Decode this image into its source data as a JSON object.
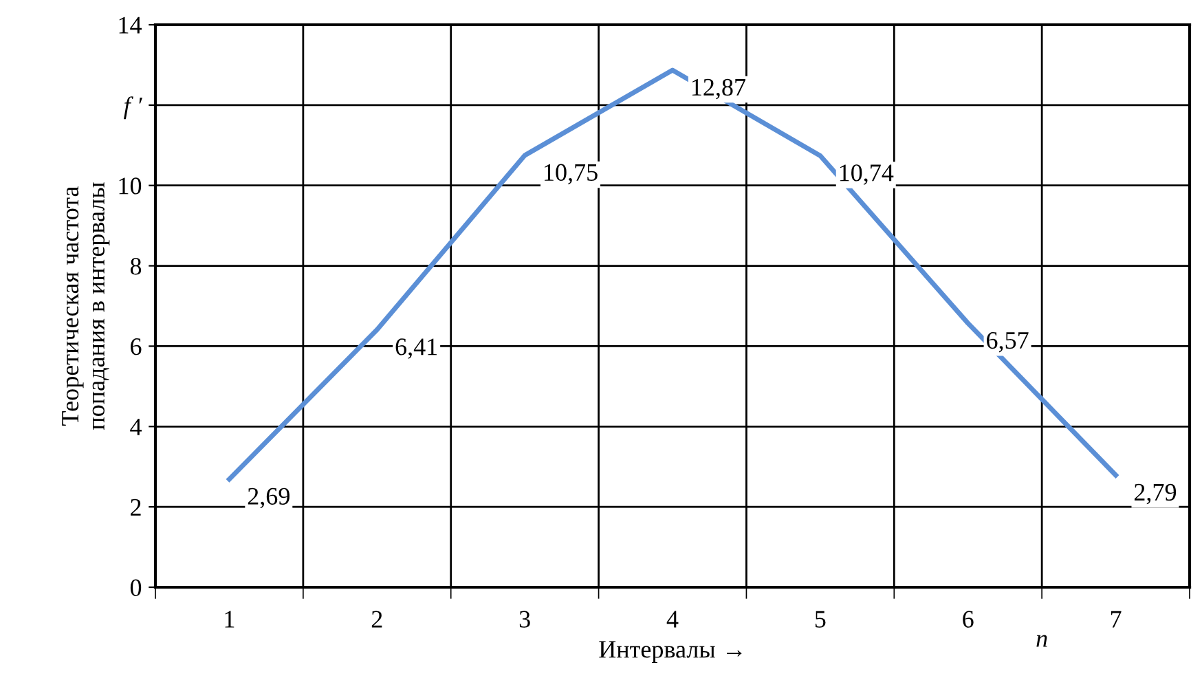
{
  "chart_data": {
    "type": "line",
    "categories": [
      "1",
      "2",
      "3",
      "4",
      "5",
      "6",
      "7"
    ],
    "series": [
      {
        "color": "#5b8fd6",
        "values": [
          2.69,
          6.41,
          10.75,
          12.87,
          10.74,
          6.57,
          2.79
        ],
        "value_labels": [
          "2,69",
          "6,41",
          "10,75",
          "12,87",
          "10,74",
          "6,57",
          "2,79"
        ]
      }
    ],
    "xlabel": "Интервалы →",
    "ylabel": "Теоретическая частота\nпопадания в интервалы",
    "ylim": [
      0,
      14
    ],
    "yticks": [
      0,
      2,
      4,
      6,
      8,
      10,
      {
        "value": 12,
        "label": "f ′"
      },
      14
    ],
    "annotations": [
      "n"
    ],
    "grid": true,
    "marker": "none",
    "line_style": "solid"
  }
}
